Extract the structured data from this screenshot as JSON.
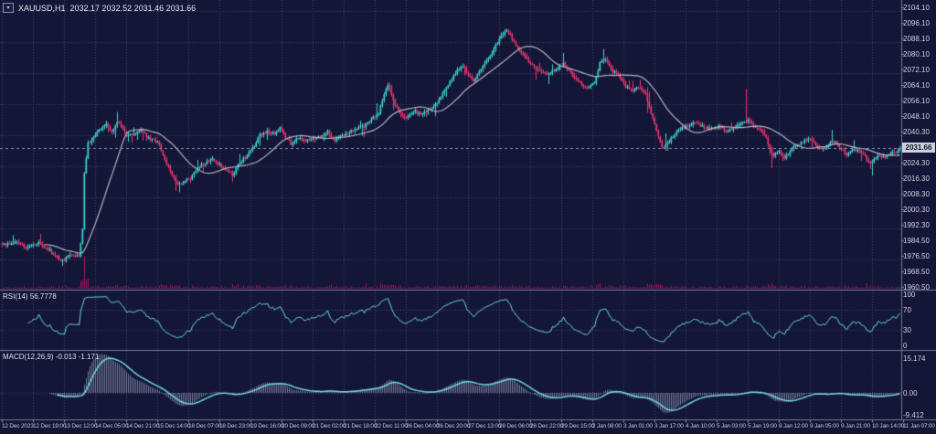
{
  "window": {
    "symbol": "XAUUSD,H1",
    "ohlc": "2032.17 2032.52 2031.46 2031.66",
    "collapse_icon": "▾"
  },
  "panels": {
    "rsi": {
      "label": "RSI(14) 56.7778",
      "axis": [
        {
          "text": "100",
          "value": 100
        },
        {
          "text": "70",
          "value": 70
        },
        {
          "text": "30",
          "value": 30
        },
        {
          "text": "0",
          "value": 0
        }
      ],
      "levels": [
        70,
        30
      ]
    },
    "macd": {
      "label": "MACD(12,26,9) -0.013 -1.171",
      "axis": [
        {
          "text": "15.174",
          "value": 15.174
        },
        {
          "text": "0.00",
          "value": 0
        },
        {
          "text": "-9.412",
          "value": -9.412
        }
      ],
      "levels": [
        0
      ]
    }
  },
  "price_axis": {
    "labels": [
      "2104.10",
      "2096.10",
      "2088.10",
      "2080.10",
      "2072.10",
      "2064.10",
      "2056.10",
      "2048.10",
      "2040.30",
      "2032.30",
      "2024.30",
      "2016.30",
      "2008.30",
      "2000.30",
      "1992.30",
      "1984.50",
      "1976.50",
      "1968.50",
      "1960.50"
    ],
    "current_price": "2031.66"
  },
  "time_axis": {
    "labels": [
      "12 Dec 2023",
      "12 Dec 19:00",
      "13 Dec 12:00",
      "14 Dec 05:00",
      "14 Dec 21:00",
      "15 Dec 14:00",
      "18 Dec 07:00",
      "18 Dec 23:00",
      "19 Dec 16:00",
      "20 Dec 09:00",
      "21 Dec 02:00",
      "21 Dec 18:00",
      "22 Dec 11:00",
      "26 Dec 04:00",
      "26 Dec 20:00",
      "27 Dec 13:00",
      "28 Dec 06:00",
      "28 Dec 22:00",
      "29 Dec 15:00",
      "2 Jan 08:00",
      "3 Jan 01:00",
      "3 Jan 17:00",
      "4 Jan 10:00",
      "5 Jan 03:00",
      "5 Jan 19:00",
      "8 Jan 12:00",
      "9 Jan 05:00",
      "9 Jan 21:00",
      "10 Jan 14:00",
      "11 Jan 07:00"
    ]
  },
  "colors": {
    "background": "#131637",
    "grid": "#41466f",
    "bull": "#38d5cb",
    "bear": "#e8356d",
    "volume": "#a0175a",
    "ma_line": "#b3b5c2",
    "indicator_line": "#6fd9e4",
    "macd_histogram": "#8d93ad",
    "separator": "#757a9c",
    "tick": "#8a8da6",
    "price_line": "#8d93ad",
    "text": "#cfd2de",
    "price_box_bg": "#ccd0db"
  },
  "chart_data": {
    "type": "candlestick",
    "title": "XAUUSD,H1 2032.17 2032.52 2031.46 2031.66",
    "symbol": "XAUUSD",
    "timeframe": "H1",
    "bars": 492,
    "last_close": 2031.66,
    "ylim": [
      1960.5,
      2104.1
    ],
    "price_label_top_value": 2104.1,
    "price_label_step": 8,
    "rsi_ylim": [
      0,
      100
    ],
    "macd_ylim": [
      -9.412,
      15.174
    ],
    "legend_position": "top-left",
    "grid": true,
    "indicators": [
      {
        "name": "MA",
        "period": 24
      },
      {
        "name": "RSI",
        "period": 14,
        "last": 56.7778
      },
      {
        "name": "MACD",
        "fast": 12,
        "slow": 26,
        "signal": 9,
        "last_main": -0.013,
        "last_signal": -1.171
      }
    ],
    "price_keyframes": [
      [
        0,
        1982
      ],
      [
        8,
        1983
      ],
      [
        14,
        1980
      ],
      [
        20,
        1983
      ],
      [
        26,
        1979
      ],
      [
        31,
        1975
      ],
      [
        34,
        1974
      ],
      [
        38,
        1977
      ],
      [
        42,
        1976
      ],
      [
        44,
        1990
      ],
      [
        45,
        2018
      ],
      [
        47,
        2034
      ],
      [
        50,
        2037
      ],
      [
        54,
        2042
      ],
      [
        57,
        2044
      ],
      [
        60,
        2040
      ],
      [
        63,
        2046
      ],
      [
        65,
        2043
      ],
      [
        68,
        2038
      ],
      [
        72,
        2039
      ],
      [
        76,
        2041
      ],
      [
        80,
        2037
      ],
      [
        85,
        2035
      ],
      [
        88,
        2028
      ],
      [
        92,
        2020
      ],
      [
        96,
        2013
      ],
      [
        99,
        2014
      ],
      [
        103,
        2016
      ],
      [
        107,
        2021
      ],
      [
        111,
        2024
      ],
      [
        115,
        2026
      ],
      [
        119,
        2023
      ],
      [
        123,
        2020
      ],
      [
        126,
        2018
      ],
      [
        130,
        2024
      ],
      [
        134,
        2028
      ],
      [
        138,
        2033
      ],
      [
        141,
        2038
      ],
      [
        145,
        2040
      ],
      [
        149,
        2039
      ],
      [
        152,
        2042
      ],
      [
        155,
        2037
      ],
      [
        158,
        2034
      ],
      [
        162,
        2037
      ],
      [
        166,
        2035
      ],
      [
        170,
        2036
      ],
      [
        174,
        2038
      ],
      [
        178,
        2040
      ],
      [
        182,
        2036
      ],
      [
        186,
        2038
      ],
      [
        190,
        2040
      ],
      [
        194,
        2042
      ],
      [
        198,
        2043
      ],
      [
        202,
        2046
      ],
      [
        206,
        2050
      ],
      [
        209,
        2060
      ],
      [
        211,
        2064
      ],
      [
        214,
        2056
      ],
      [
        218,
        2049
      ],
      [
        221,
        2047
      ],
      [
        225,
        2051
      ],
      [
        229,
        2049
      ],
      [
        233,
        2051
      ],
      [
        237,
        2054
      ],
      [
        241,
        2060
      ],
      [
        245,
        2066
      ],
      [
        249,
        2072
      ],
      [
        252,
        2074
      ],
      [
        255,
        2069
      ],
      [
        258,
        2066
      ],
      [
        262,
        2072
      ],
      [
        266,
        2078
      ],
      [
        270,
        2084
      ],
      [
        273,
        2090
      ],
      [
        276,
        2092
      ],
      [
        279,
        2088
      ],
      [
        283,
        2082
      ],
      [
        287,
        2077
      ],
      [
        291,
        2074
      ],
      [
        295,
        2071
      ],
      [
        299,
        2070
      ],
      [
        303,
        2072
      ],
      [
        307,
        2075
      ],
      [
        310,
        2072
      ],
      [
        313,
        2068
      ],
      [
        317,
        2064
      ],
      [
        320,
        2062
      ],
      [
        324,
        2066
      ],
      [
        327,
        2075
      ],
      [
        330,
        2077
      ],
      [
        333,
        2072
      ],
      [
        337,
        2069
      ],
      [
        341,
        2063
      ],
      [
        345,
        2061
      ],
      [
        349,
        2063
      ],
      [
        352,
        2059
      ],
      [
        355,
        2050
      ],
      [
        358,
        2041
      ],
      [
        361,
        2032
      ],
      [
        364,
        2034
      ],
      [
        368,
        2039
      ],
      [
        372,
        2042
      ],
      [
        376,
        2043
      ],
      [
        380,
        2045
      ],
      [
        384,
        2042
      ],
      [
        388,
        2041
      ],
      [
        392,
        2043
      ],
      [
        396,
        2040
      ],
      [
        400,
        2042
      ],
      [
        404,
        2044
      ],
      [
        408,
        2046
      ],
      [
        412,
        2042
      ],
      [
        416,
        2040
      ],
      [
        419,
        2034
      ],
      [
        422,
        2028
      ],
      [
        425,
        2030
      ],
      [
        428,
        2026
      ],
      [
        431,
        2030
      ],
      [
        434,
        2033
      ],
      [
        438,
        2035
      ],
      [
        442,
        2037
      ],
      [
        446,
        2032
      ],
      [
        450,
        2031
      ],
      [
        453,
        2035
      ],
      [
        456,
        2034
      ],
      [
        459,
        2031
      ],
      [
        462,
        2028
      ],
      [
        465,
        2031
      ],
      [
        468,
        2030
      ],
      [
        471,
        2029
      ],
      [
        474,
        2024
      ],
      [
        477,
        2026
      ],
      [
        480,
        2028
      ],
      [
        483,
        2027
      ],
      [
        486,
        2029
      ],
      [
        489,
        2030
      ],
      [
        491,
        2031.66
      ]
    ],
    "spike_wicks": [
      {
        "i": 407,
        "dir": "up",
        "len": 17
      },
      {
        "i": 421,
        "dir": "down",
        "len": 8
      },
      {
        "i": 33,
        "dir": "down",
        "len": 3
      },
      {
        "i": 97,
        "dir": "down",
        "len": 4
      },
      {
        "i": 126,
        "dir": "down",
        "len": 3
      },
      {
        "i": 63,
        "dir": "up",
        "len": 5
      },
      {
        "i": 454,
        "dir": "up",
        "len": 6
      },
      {
        "i": 475,
        "dir": "down",
        "len": 3
      }
    ]
  }
}
